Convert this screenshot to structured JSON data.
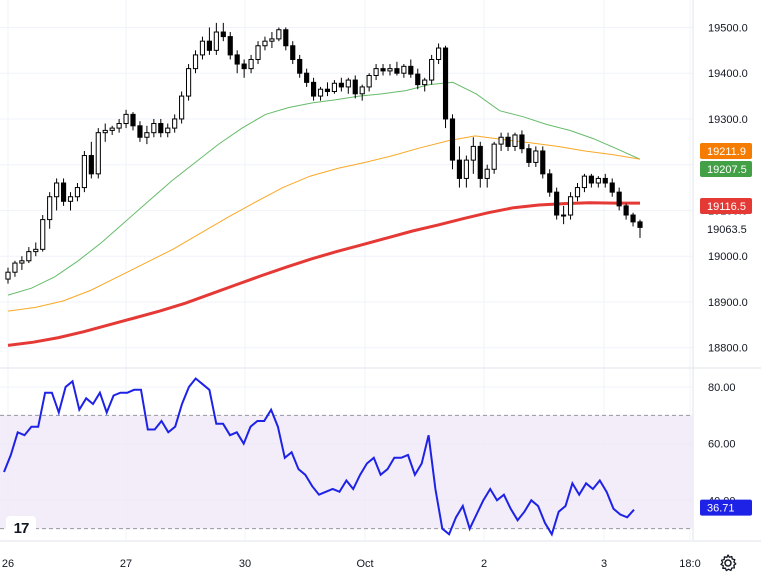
{
  "chart_data": {
    "type": "candlestick",
    "price_panel": {
      "ylim": [
        18760,
        19560
      ],
      "y_ticks": [
        "19500.0",
        "19400.0",
        "19300.0",
        "19200.0",
        "19100.0",
        "19000.0",
        "18900.0",
        "18800.0"
      ],
      "candles": [
        [
          18950,
          18975,
          18940,
          18965
        ],
        [
          18965,
          18990,
          18955,
          18985
        ],
        [
          18985,
          19000,
          18970,
          18990
        ],
        [
          18990,
          19020,
          18985,
          19010
        ],
        [
          19010,
          19030,
          19000,
          19015
        ],
        [
          19015,
          19090,
          19010,
          19080
        ],
        [
          19080,
          19140,
          19060,
          19130
        ],
        [
          19130,
          19170,
          19100,
          19160
        ],
        [
          19160,
          19170,
          19110,
          19120
        ],
        [
          19120,
          19140,
          19100,
          19130
        ],
        [
          19130,
          19160,
          19120,
          19150
        ],
        [
          19150,
          19230,
          19140,
          19220
        ],
        [
          19220,
          19250,
          19170,
          19180
        ],
        [
          19180,
          19280,
          19170,
          19270
        ],
        [
          19270,
          19290,
          19250,
          19275
        ],
        [
          19275,
          19285,
          19265,
          19280
        ],
        [
          19280,
          19300,
          19270,
          19290
        ],
        [
          19290,
          19320,
          19280,
          19310
        ],
        [
          19310,
          19315,
          19275,
          19285
        ],
        [
          19285,
          19295,
          19250,
          19260
        ],
        [
          19260,
          19285,
          19245,
          19270
        ],
        [
          19270,
          19300,
          19260,
          19290
        ],
        [
          19290,
          19300,
          19260,
          19270
        ],
        [
          19270,
          19290,
          19260,
          19280
        ],
        [
          19280,
          19310,
          19270,
          19300
        ],
        [
          19300,
          19360,
          19290,
          19350
        ],
        [
          19350,
          19420,
          19340,
          19410
        ],
        [
          19410,
          19450,
          19400,
          19440
        ],
        [
          19440,
          19480,
          19430,
          19470
        ],
        [
          19470,
          19500,
          19440,
          19450
        ],
        [
          19450,
          19510,
          19440,
          19490
        ],
        [
          19490,
          19510,
          19470,
          19480
        ],
        [
          19480,
          19490,
          19430,
          19440
        ],
        [
          19440,
          19450,
          19400,
          19420
        ],
        [
          19420,
          19430,
          19390,
          19410
        ],
        [
          19410,
          19440,
          19400,
          19430
        ],
        [
          19430,
          19470,
          19420,
          19460
        ],
        [
          19460,
          19480,
          19450,
          19470
        ],
        [
          19470,
          19490,
          19455,
          19475
        ],
        [
          19475,
          19500,
          19470,
          19495
        ],
        [
          19495,
          19500,
          19450,
          19460
        ],
        [
          19460,
          19470,
          19420,
          19430
        ],
        [
          19430,
          19440,
          19390,
          19400
        ],
        [
          19400,
          19410,
          19370,
          19380
        ],
        [
          19380,
          19390,
          19340,
          19350
        ],
        [
          19350,
          19370,
          19340,
          19365
        ],
        [
          19365,
          19380,
          19350,
          19360
        ],
        [
          19360,
          19385,
          19355,
          19378
        ],
        [
          19378,
          19390,
          19360,
          19370
        ],
        [
          19370,
          19390,
          19355,
          19385
        ],
        [
          19385,
          19395,
          19345,
          19355
        ],
        [
          19355,
          19375,
          19340,
          19370
        ],
        [
          19370,
          19400,
          19360,
          19395
        ],
        [
          19395,
          19420,
          19385,
          19410
        ],
        [
          19410,
          19420,
          19395,
          19405
        ],
        [
          19405,
          19420,
          19395,
          19410
        ],
        [
          19410,
          19425,
          19395,
          19400
        ],
        [
          19400,
          19420,
          19390,
          19415
        ],
        [
          19415,
          19430,
          19390,
          19398
        ],
        [
          19398,
          19410,
          19365,
          19375
        ],
        [
          19375,
          19390,
          19360,
          19385
        ],
        [
          19385,
          19440,
          19375,
          19430
        ],
        [
          19430,
          19465,
          19420,
          19455
        ],
        [
          19455,
          19460,
          19280,
          19300
        ],
        [
          19300,
          19310,
          19190,
          19210
        ],
        [
          19210,
          19240,
          19150,
          19170
        ],
        [
          19170,
          19220,
          19150,
          19210
        ],
        [
          19210,
          19260,
          19180,
          19240
        ],
        [
          19240,
          19250,
          19150,
          19170
        ],
        [
          19170,
          19200,
          19150,
          19190
        ],
        [
          19190,
          19250,
          19180,
          19245
        ],
        [
          19245,
          19270,
          19230,
          19260
        ],
        [
          19260,
          19270,
          19230,
          19240
        ],
        [
          19240,
          19270,
          19230,
          19265
        ],
        [
          19265,
          19275,
          19225,
          19235
        ],
        [
          19235,
          19245,
          19195,
          19205
        ],
        [
          19205,
          19240,
          19195,
          19230
        ],
        [
          19230,
          19240,
          19170,
          19180
        ],
        [
          19180,
          19190,
          19130,
          19140
        ],
        [
          19140,
          19150,
          19080,
          19090
        ],
        [
          19090,
          19110,
          19070,
          19090
        ],
        [
          19090,
          19140,
          19080,
          19130
        ],
        [
          19130,
          19160,
          19120,
          19150
        ],
        [
          19150,
          19180,
          19140,
          19175
        ],
        [
          19175,
          19180,
          19150,
          19160
        ],
        [
          19160,
          19175,
          19150,
          19170
        ],
        [
          19170,
          19180,
          19150,
          19160
        ],
        [
          19160,
          19170,
          19130,
          19140
        ],
        [
          19140,
          19150,
          19100,
          19110
        ],
        [
          19110,
          19115,
          19080,
          19090
        ],
        [
          19090,
          19095,
          19065,
          19075
        ],
        [
          19075,
          19080,
          19040,
          19063
        ]
      ],
      "series": [
        {
          "name": "",
          "color": "#66bb6a",
          "values": [
            18915,
            18930,
            18955,
            18990,
            19030,
            19075,
            19120,
            19165,
            19205,
            19245,
            19280,
            19310,
            19325,
            19335,
            19342,
            19350,
            19355,
            19362,
            19375,
            19380,
            19355,
            19318,
            19305,
            19288,
            19275,
            19257,
            19235,
            19212
          ]
        },
        {
          "name": "",
          "color": "#f9a825",
          "values": [
            18880,
            18888,
            18902,
            18925,
            18955,
            18985,
            19015,
            19050,
            19085,
            19118,
            19150,
            19175,
            19192,
            19205,
            19220,
            19237,
            19252,
            19263,
            19255,
            19248,
            19240,
            19230,
            19222,
            19212
          ]
        },
        {
          "name": "",
          "color": "#e53935",
          "values": [
            18805,
            18812,
            18822,
            18835,
            18850,
            18865,
            18880,
            18897,
            18917,
            18937,
            18957,
            18976,
            18994,
            19010,
            19025,
            19040,
            19055,
            19068,
            19082,
            19095,
            19106,
            19112,
            19115,
            19117,
            19116,
            19116
          ]
        }
      ],
      "badges": [
        {
          "label": "19211.9",
          "value": 19211.9,
          "color": "#f57c00"
        },
        {
          "label": "19207.5",
          "value": 19207.5,
          "color": "#43a047"
        },
        {
          "label": "19116.5",
          "value": 19116.5,
          "color": "#e53935"
        },
        {
          "label": "19063.5",
          "value": 19063.5,
          "color": "#ffffff"
        }
      ]
    },
    "oscillator_panel": {
      "ylim": [
        26,
        86
      ],
      "y_ticks": [
        "80.00",
        "60.00",
        "40.00"
      ],
      "overbought": 70,
      "oversold": 30,
      "line_color": "#1e22e6",
      "values": [
        50,
        56,
        64,
        63,
        66,
        66,
        78,
        78,
        71,
        80,
        82,
        72,
        76,
        74,
        78,
        71,
        77,
        78,
        78,
        79,
        79,
        65,
        65,
        68,
        64,
        66,
        74,
        80,
        83,
        81,
        79,
        67,
        67,
        63,
        64,
        60,
        66,
        68,
        68,
        72,
        66,
        55,
        57,
        51,
        49,
        45,
        42,
        43,
        44,
        43,
        47,
        44,
        49,
        53,
        55,
        49,
        51,
        55,
        55,
        56,
        49,
        53,
        63,
        44,
        30,
        28,
        34,
        38,
        30,
        35,
        40,
        44,
        40,
        42,
        37,
        33,
        36,
        40,
        38,
        32,
        28,
        36,
        38,
        46,
        42,
        46,
        44,
        47,
        43,
        37,
        35,
        34,
        36.71
      ],
      "badge": {
        "label": "36.71",
        "value": 36.71,
        "color": "#1e22e6"
      }
    },
    "x_ticks": [
      "26",
      "27",
      "30",
      "Oct",
      "2",
      "3",
      "18:0"
    ]
  },
  "ui": {
    "logo_text": "17",
    "settings_icon": "gear-icon"
  }
}
